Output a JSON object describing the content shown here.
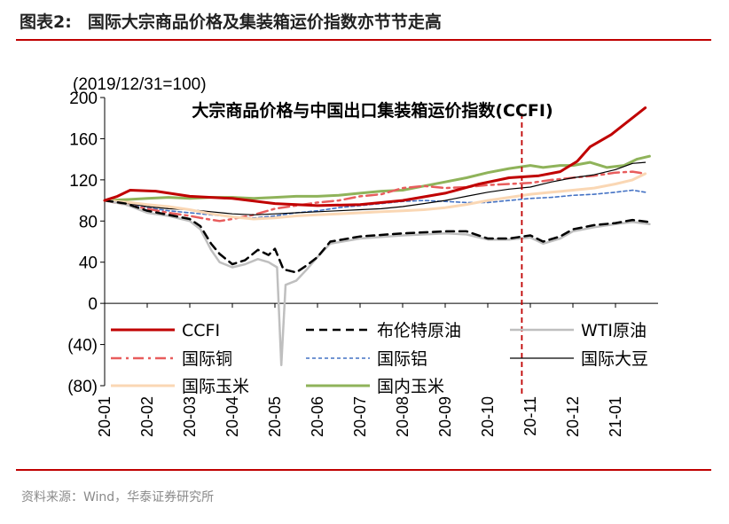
{
  "header": {
    "figure_label": "图表2:",
    "title": "国际大宗商品价格及集装箱运价指数亦节节走高"
  },
  "footer": {
    "source": "资料来源：Wind，华泰证券研究所"
  },
  "colors": {
    "rule": "#c00000"
  },
  "chart_data": {
    "type": "line",
    "title": "大宗商品价格与中国出口集装箱运价指数(CCFI)",
    "unit_note": "(2019/12/31=100)",
    "ylim": [
      -80,
      200
    ],
    "yticks": [
      200,
      160,
      120,
      80,
      40,
      0,
      -40,
      -80
    ],
    "ytick_labels": [
      "200",
      "160",
      "120",
      "80",
      "40",
      "0",
      "(40)",
      "(80)"
    ],
    "xlim": [
      0,
      13
    ],
    "xtick_labels": [
      "20-01",
      "20-02",
      "20-03",
      "20-04",
      "20-05",
      "20-06",
      "20-07",
      "20-08",
      "20-09",
      "20-10",
      "20-11",
      "20-12",
      "21-01"
    ],
    "grid": false,
    "legend_position": "lower-inside",
    "reference_line": {
      "x": 9.8,
      "color": "#c00000",
      "style": "dashed"
    },
    "series": [
      {
        "name": "CCFI",
        "color": "#c00000",
        "style": "solid",
        "width": 3,
        "points": [
          [
            0,
            100
          ],
          [
            0.3,
            104
          ],
          [
            0.6,
            110
          ],
          [
            1.2,
            109
          ],
          [
            2,
            104
          ],
          [
            3,
            102
          ],
          [
            4,
            97
          ],
          [
            5,
            95
          ],
          [
            6,
            96
          ],
          [
            7,
            100
          ],
          [
            8,
            107
          ],
          [
            8.8,
            116
          ],
          [
            9.5,
            122
          ],
          [
            10.2,
            124
          ],
          [
            10.7,
            128
          ],
          [
            11.1,
            138
          ],
          [
            11.4,
            152
          ],
          [
            11.9,
            164
          ],
          [
            12.3,
            177
          ],
          [
            12.7,
            190
          ]
        ]
      },
      {
        "name": "布伦特原油",
        "color": "#000000",
        "style": "dashed",
        "width": 2.5,
        "points": [
          [
            0,
            100
          ],
          [
            0.5,
            97
          ],
          [
            1,
            90
          ],
          [
            1.5,
            86
          ],
          [
            2,
            82
          ],
          [
            2.25,
            75
          ],
          [
            2.5,
            58
          ],
          [
            2.7,
            48
          ],
          [
            3,
            38
          ],
          [
            3.3,
            42
          ],
          [
            3.6,
            52
          ],
          [
            3.85,
            47
          ],
          [
            4,
            53
          ],
          [
            4.2,
            33
          ],
          [
            4.5,
            30
          ],
          [
            4.75,
            37
          ],
          [
            5,
            45
          ],
          [
            5.3,
            60
          ],
          [
            6,
            65
          ],
          [
            7,
            68
          ],
          [
            8,
            70
          ],
          [
            8.5,
            70
          ],
          [
            9,
            63
          ],
          [
            9.5,
            63
          ],
          [
            10,
            66
          ],
          [
            10.3,
            60
          ],
          [
            10.7,
            65
          ],
          [
            11,
            72
          ],
          [
            11.5,
            76
          ],
          [
            12,
            78
          ],
          [
            12.4,
            81
          ],
          [
            12.8,
            79
          ]
        ]
      },
      {
        "name": "WTI原油",
        "color": "#bfbfbf",
        "style": "solid",
        "width": 2.5,
        "points": [
          [
            0,
            100
          ],
          [
            0.5,
            96
          ],
          [
            1,
            88
          ],
          [
            1.5,
            85
          ],
          [
            2,
            80
          ],
          [
            2.25,
            72
          ],
          [
            2.5,
            52
          ],
          [
            2.7,
            40
          ],
          [
            3,
            35
          ],
          [
            3.3,
            38
          ],
          [
            3.6,
            43
          ],
          [
            3.85,
            40
          ],
          [
            4.05,
            35
          ],
          [
            4.15,
            -60
          ],
          [
            4.25,
            18
          ],
          [
            4.5,
            22
          ],
          [
            4.75,
            33
          ],
          [
            5,
            45
          ],
          [
            5.3,
            58
          ],
          [
            6,
            63
          ],
          [
            7,
            66
          ],
          [
            8,
            68
          ],
          [
            8.5,
            67
          ],
          [
            9,
            62
          ],
          [
            9.5,
            62
          ],
          [
            10,
            64
          ],
          [
            10.3,
            58
          ],
          [
            10.7,
            63
          ],
          [
            11,
            70
          ],
          [
            11.5,
            74
          ],
          [
            12,
            77
          ],
          [
            12.4,
            79
          ],
          [
            12.8,
            77
          ]
        ]
      },
      {
        "name": "国际铜",
        "color": "#e85d5d",
        "style": "dashdot",
        "width": 2.5,
        "points": [
          [
            0,
            100
          ],
          [
            0.6,
            95
          ],
          [
            1,
            92
          ],
          [
            1.5,
            88
          ],
          [
            2,
            85
          ],
          [
            2.4,
            82
          ],
          [
            2.7,
            80
          ],
          [
            3,
            82
          ],
          [
            3.5,
            86
          ],
          [
            4,
            92
          ],
          [
            4.5,
            95
          ],
          [
            5,
            98
          ],
          [
            5.5,
            100
          ],
          [
            6,
            104
          ],
          [
            6.5,
            106
          ],
          [
            7,
            112
          ],
          [
            7.5,
            114
          ],
          [
            8,
            112
          ],
          [
            8.5,
            113
          ],
          [
            9,
            115
          ],
          [
            9.5,
            116
          ],
          [
            10,
            117
          ],
          [
            10.5,
            120
          ],
          [
            11,
            122
          ],
          [
            11.5,
            124
          ],
          [
            12,
            127
          ],
          [
            12.4,
            128
          ],
          [
            12.7,
            126
          ]
        ]
      },
      {
        "name": "国际铝",
        "color": "#4472c4",
        "style": "shortdash",
        "width": 1.6,
        "points": [
          [
            0,
            100
          ],
          [
            0.6,
            97
          ],
          [
            1,
            93
          ],
          [
            1.5,
            90
          ],
          [
            2,
            88
          ],
          [
            2.5,
            86
          ],
          [
            3,
            84
          ],
          [
            3.5,
            83
          ],
          [
            4,
            85
          ],
          [
            4.5,
            88
          ],
          [
            5,
            90
          ],
          [
            5.5,
            93
          ],
          [
            6,
            95
          ],
          [
            6.5,
            97
          ],
          [
            7,
            99
          ],
          [
            7.5,
            100
          ],
          [
            8,
            99
          ],
          [
            8.5,
            98
          ],
          [
            9,
            98
          ],
          [
            9.5,
            100
          ],
          [
            10,
            102
          ],
          [
            10.5,
            103
          ],
          [
            11,
            105
          ],
          [
            11.5,
            106
          ],
          [
            12,
            108
          ],
          [
            12.4,
            110
          ],
          [
            12.7,
            108
          ]
        ]
      },
      {
        "name": "国际大豆",
        "color": "#000000",
        "style": "solid",
        "width": 1.2,
        "points": [
          [
            0,
            100
          ],
          [
            0.6,
            97
          ],
          [
            1,
            94
          ],
          [
            1.5,
            92
          ],
          [
            2,
            91
          ],
          [
            2.5,
            89
          ],
          [
            3,
            87
          ],
          [
            3.5,
            86
          ],
          [
            4,
            87
          ],
          [
            4.5,
            88
          ],
          [
            5,
            89
          ],
          [
            5.5,
            90
          ],
          [
            6,
            91
          ],
          [
            6.5,
            92
          ],
          [
            7,
            94
          ],
          [
            7.5,
            97
          ],
          [
            8,
            100
          ],
          [
            8.5,
            104
          ],
          [
            9,
            108
          ],
          [
            9.5,
            111
          ],
          [
            10,
            113
          ],
          [
            10.5,
            118
          ],
          [
            11,
            122
          ],
          [
            11.5,
            125
          ],
          [
            12,
            130
          ],
          [
            12.4,
            136
          ],
          [
            12.7,
            137
          ]
        ]
      },
      {
        "name": "国际玉米",
        "color": "#fad7b4",
        "style": "solid",
        "width": 3,
        "points": [
          [
            0,
            100
          ],
          [
            0.6,
            98
          ],
          [
            1,
            96
          ],
          [
            1.5,
            94
          ],
          [
            2,
            91
          ],
          [
            2.5,
            87
          ],
          [
            3,
            84
          ],
          [
            3.5,
            82
          ],
          [
            4,
            83
          ],
          [
            4.5,
            85
          ],
          [
            5,
            86
          ],
          [
            5.5,
            87
          ],
          [
            6,
            88
          ],
          [
            6.5,
            89
          ],
          [
            7,
            90
          ],
          [
            7.5,
            91
          ],
          [
            8,
            93
          ],
          [
            8.5,
            96
          ],
          [
            9,
            100
          ],
          [
            9.5,
            103
          ],
          [
            10,
            106
          ],
          [
            10.5,
            108
          ],
          [
            11,
            110
          ],
          [
            11.5,
            112
          ],
          [
            12,
            116
          ],
          [
            12.4,
            120
          ],
          [
            12.7,
            126
          ]
        ]
      },
      {
        "name": "国内玉米",
        "color": "#8fb35a",
        "style": "solid",
        "width": 3,
        "points": [
          [
            0,
            100
          ],
          [
            0.6,
            101
          ],
          [
            1,
            102
          ],
          [
            1.5,
            103
          ],
          [
            2,
            102
          ],
          [
            2.5,
            103
          ],
          [
            3,
            103
          ],
          [
            3.5,
            102
          ],
          [
            4,
            103
          ],
          [
            4.5,
            104
          ],
          [
            5,
            104
          ],
          [
            5.5,
            105
          ],
          [
            6,
            107
          ],
          [
            6.5,
            109
          ],
          [
            7,
            110
          ],
          [
            7.5,
            114
          ],
          [
            8,
            118
          ],
          [
            8.5,
            122
          ],
          [
            9,
            127
          ],
          [
            9.5,
            131
          ],
          [
            10,
            134
          ],
          [
            10.3,
            132
          ],
          [
            10.7,
            134
          ],
          [
            11,
            134
          ],
          [
            11.4,
            137
          ],
          [
            11.8,
            132
          ],
          [
            12.2,
            134
          ],
          [
            12.5,
            140
          ],
          [
            12.8,
            143
          ]
        ]
      }
    ]
  }
}
